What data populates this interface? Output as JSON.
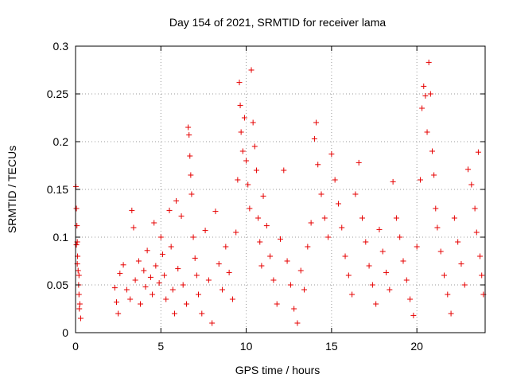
{
  "chart_data": {
    "type": "scatter",
    "title": "Day 154 of 2021, SRMTID for receiver lama",
    "xlabel": "GPS time / hours",
    "ylabel": "SRMTID / TECUs",
    "xlim": [
      0,
      24
    ],
    "ylim": [
      0,
      0.3
    ],
    "xticks": [
      0,
      5,
      10,
      15,
      20
    ],
    "xtick_labels": [
      "0",
      "5",
      "10",
      "15",
      "20"
    ],
    "yticks": [
      0,
      0.05,
      0.1,
      0.15,
      0.2,
      0.25,
      0.3
    ],
    "ytick_labels": [
      "0",
      "0.05",
      "0.1",
      "0.15",
      "0.2",
      "0.25",
      "0.3"
    ],
    "grid": true,
    "marker": "plus",
    "color": "#e60000",
    "series": [
      {
        "name": "SRMTID",
        "points": [
          [
            0.02,
            0.153
          ],
          [
            0.05,
            0.13
          ],
          [
            0.08,
            0.112
          ],
          [
            0.1,
            0.095
          ],
          [
            0.12,
            0.08
          ],
          [
            0.15,
            0.065
          ],
          [
            0.18,
            0.05
          ],
          [
            0.2,
            0.04
          ],
          [
            0.25,
            0.03
          ],
          [
            0.3,
            0.015
          ],
          [
            0.05,
            0.092
          ],
          [
            0.1,
            0.072
          ],
          [
            0.2,
            0.06
          ],
          [
            0.22,
            0.025
          ],
          [
            2.3,
            0.047
          ],
          [
            2.4,
            0.032
          ],
          [
            2.5,
            0.02
          ],
          [
            2.6,
            0.062
          ],
          [
            2.8,
            0.071
          ],
          [
            3.0,
            0.045
          ],
          [
            3.2,
            0.035
          ],
          [
            3.3,
            0.128
          ],
          [
            3.4,
            0.11
          ],
          [
            3.5,
            0.055
          ],
          [
            3.7,
            0.075
          ],
          [
            3.8,
            0.03
          ],
          [
            4.0,
            0.065
          ],
          [
            4.1,
            0.048
          ],
          [
            4.2,
            0.086
          ],
          [
            4.4,
            0.058
          ],
          [
            4.5,
            0.04
          ],
          [
            4.6,
            0.115
          ],
          [
            4.7,
            0.07
          ],
          [
            4.9,
            0.052
          ],
          [
            5.0,
            0.1
          ],
          [
            5.1,
            0.082
          ],
          [
            5.2,
            0.06
          ],
          [
            5.3,
            0.035
          ],
          [
            5.5,
            0.128
          ],
          [
            5.6,
            0.09
          ],
          [
            5.7,
            0.045
          ],
          [
            5.8,
            0.02
          ],
          [
            5.9,
            0.138
          ],
          [
            6.0,
            0.067
          ],
          [
            6.2,
            0.122
          ],
          [
            6.3,
            0.05
          ],
          [
            6.5,
            0.03
          ],
          [
            6.6,
            0.215
          ],
          [
            6.65,
            0.207
          ],
          [
            6.7,
            0.185
          ],
          [
            6.75,
            0.165
          ],
          [
            6.8,
            0.145
          ],
          [
            6.9,
            0.1
          ],
          [
            7.0,
            0.078
          ],
          [
            7.1,
            0.06
          ],
          [
            7.2,
            0.04
          ],
          [
            7.4,
            0.02
          ],
          [
            7.6,
            0.107
          ],
          [
            7.8,
            0.055
          ],
          [
            8.0,
            0.01
          ],
          [
            8.2,
            0.127
          ],
          [
            8.4,
            0.072
          ],
          [
            8.6,
            0.045
          ],
          [
            8.8,
            0.09
          ],
          [
            9.0,
            0.063
          ],
          [
            9.2,
            0.035
          ],
          [
            9.4,
            0.105
          ],
          [
            9.5,
            0.16
          ],
          [
            9.6,
            0.262
          ],
          [
            9.65,
            0.238
          ],
          [
            9.7,
            0.21
          ],
          [
            9.8,
            0.19
          ],
          [
            9.9,
            0.225
          ],
          [
            10.0,
            0.18
          ],
          [
            10.1,
            0.155
          ],
          [
            10.2,
            0.13
          ],
          [
            10.3,
            0.275
          ],
          [
            10.4,
            0.22
          ],
          [
            10.5,
            0.195
          ],
          [
            10.6,
            0.17
          ],
          [
            10.7,
            0.12
          ],
          [
            10.8,
            0.095
          ],
          [
            10.9,
            0.07
          ],
          [
            11.0,
            0.143
          ],
          [
            11.2,
            0.112
          ],
          [
            11.4,
            0.08
          ],
          [
            11.6,
            0.055
          ],
          [
            11.8,
            0.03
          ],
          [
            12.0,
            0.098
          ],
          [
            12.2,
            0.17
          ],
          [
            12.4,
            0.075
          ],
          [
            12.6,
            0.05
          ],
          [
            12.8,
            0.025
          ],
          [
            13.0,
            0.01
          ],
          [
            13.2,
            0.065
          ],
          [
            13.4,
            0.045
          ],
          [
            13.6,
            0.09
          ],
          [
            13.8,
            0.115
          ],
          [
            14.0,
            0.203
          ],
          [
            14.1,
            0.22
          ],
          [
            14.2,
            0.176
          ],
          [
            14.4,
            0.145
          ],
          [
            14.6,
            0.12
          ],
          [
            14.8,
            0.1
          ],
          [
            15.0,
            0.187
          ],
          [
            15.2,
            0.16
          ],
          [
            15.4,
            0.135
          ],
          [
            15.6,
            0.11
          ],
          [
            15.8,
            0.08
          ],
          [
            16.0,
            0.06
          ],
          [
            16.2,
            0.04
          ],
          [
            16.4,
            0.145
          ],
          [
            16.6,
            0.178
          ],
          [
            16.8,
            0.12
          ],
          [
            17.0,
            0.095
          ],
          [
            17.2,
            0.07
          ],
          [
            17.4,
            0.05
          ],
          [
            17.6,
            0.03
          ],
          [
            17.8,
            0.108
          ],
          [
            18.0,
            0.085
          ],
          [
            18.2,
            0.063
          ],
          [
            18.4,
            0.045
          ],
          [
            18.6,
            0.158
          ],
          [
            18.8,
            0.12
          ],
          [
            19.0,
            0.1
          ],
          [
            19.2,
            0.075
          ],
          [
            19.4,
            0.055
          ],
          [
            19.6,
            0.035
          ],
          [
            19.8,
            0.018
          ],
          [
            20.0,
            0.09
          ],
          [
            20.2,
            0.16
          ],
          [
            20.3,
            0.235
          ],
          [
            20.4,
            0.258
          ],
          [
            20.5,
            0.248
          ],
          [
            20.6,
            0.21
          ],
          [
            20.7,
            0.283
          ],
          [
            20.8,
            0.25
          ],
          [
            20.9,
            0.19
          ],
          [
            21.0,
            0.165
          ],
          [
            21.1,
            0.13
          ],
          [
            21.2,
            0.11
          ],
          [
            21.4,
            0.085
          ],
          [
            21.6,
            0.06
          ],
          [
            21.8,
            0.04
          ],
          [
            22.0,
            0.02
          ],
          [
            22.2,
            0.12
          ],
          [
            22.4,
            0.095
          ],
          [
            22.6,
            0.072
          ],
          [
            22.8,
            0.05
          ],
          [
            23.0,
            0.171
          ],
          [
            23.2,
            0.155
          ],
          [
            23.4,
            0.13
          ],
          [
            23.5,
            0.105
          ],
          [
            23.6,
            0.189
          ],
          [
            23.7,
            0.08
          ],
          [
            23.8,
            0.06
          ],
          [
            23.9,
            0.04
          ]
        ]
      }
    ]
  }
}
